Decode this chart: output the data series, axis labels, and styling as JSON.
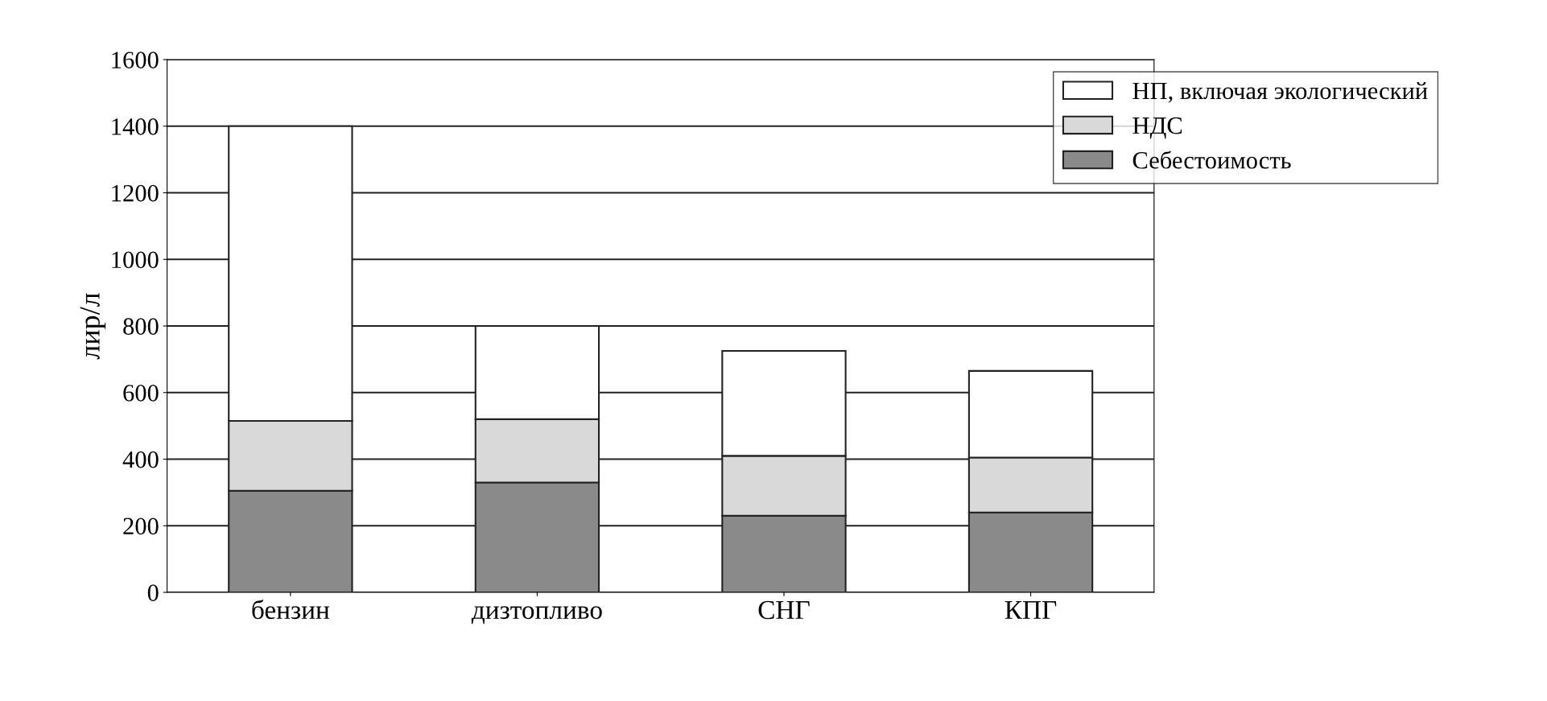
{
  "chart_data": {
    "type": "bar",
    "stacked": true,
    "ylabel": "лир/л",
    "categories": [
      "бензин",
      "дизтопливо",
      "СНГ",
      "КПГ"
    ],
    "series": [
      {
        "name": "Себестоимость",
        "color": "#8a8a8a",
        "values": [
          305,
          330,
          230,
          240
        ]
      },
      {
        "name": "НДС",
        "color": "#d9d9d9",
        "values": [
          210,
          190,
          180,
          165
        ]
      },
      {
        "name": "НП, включая экологический",
        "color": "#ffffff",
        "values": [
          885,
          280,
          315,
          260
        ]
      }
    ],
    "ylim": [
      0,
      1600
    ],
    "yticks": [
      0,
      200,
      400,
      600,
      800,
      1000,
      1200,
      1400,
      1600
    ],
    "grid": "y",
    "legend": "top right"
  }
}
